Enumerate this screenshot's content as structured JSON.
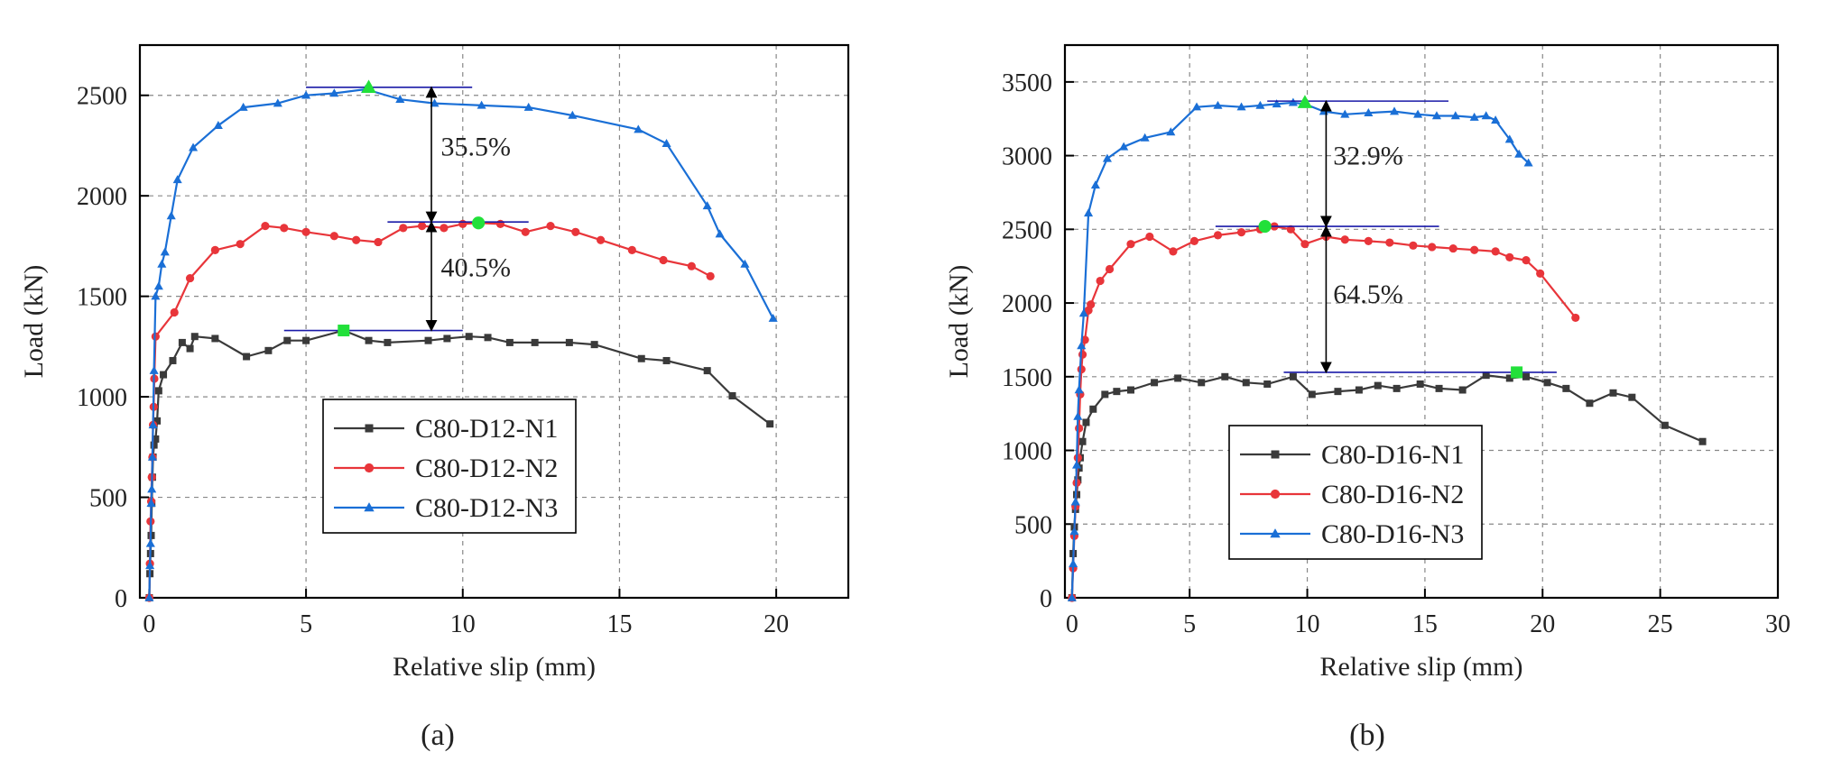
{
  "chart_data": [
    {
      "type": "line",
      "panel_label": "(a)",
      "xlabel": "Relative slip (mm)",
      "ylabel": "Load (kN)",
      "xlim": [
        -0.3,
        22.3
      ],
      "ylim": [
        0,
        2750
      ],
      "xticks": [
        0,
        5,
        10,
        15,
        20
      ],
      "yticks": [
        0,
        500,
        1000,
        1500,
        2000,
        2500
      ],
      "grid": true,
      "legend_position": "bottom-center",
      "series": [
        {
          "name": "C80-D12-N1",
          "color": "#3a3a3a",
          "marker": "square",
          "x": [
            0,
            0.02,
            0.04,
            0.06,
            0.08,
            0.1,
            0.12,
            0.15,
            0.2,
            0.25,
            0.3,
            0.45,
            0.75,
            1.05,
            1.3,
            1.45,
            2.1,
            3.1,
            3.8,
            4.4,
            5.0,
            6.2,
            7.0,
            7.6,
            8.9,
            9.5,
            10.2,
            10.8,
            11.5,
            12.3,
            13.4,
            14.2,
            15.7,
            16.5,
            17.8,
            18.6,
            19.8
          ],
          "y": [
            0,
            120,
            220,
            310,
            470,
            600,
            700,
            760,
            790,
            880,
            1030,
            1110,
            1180,
            1270,
            1240,
            1300,
            1290,
            1200,
            1230,
            1280,
            1280,
            1330,
            1280,
            1270,
            1280,
            1290,
            1300,
            1295,
            1270,
            1270,
            1270,
            1260,
            1190,
            1180,
            1130,
            1005,
            865
          ]
        },
        {
          "name": "C80-D12-N2",
          "color": "#e8353a",
          "marker": "circle",
          "x": [
            0,
            0.02,
            0.04,
            0.06,
            0.08,
            0.1,
            0.12,
            0.14,
            0.16,
            0.2,
            0.8,
            1.3,
            2.1,
            2.9,
            3.7,
            4.3,
            5.0,
            5.9,
            6.6,
            7.3,
            8.1,
            8.7,
            9.4,
            10.0,
            10.5,
            11.2,
            12.0,
            12.8,
            13.6,
            14.4,
            15.4,
            16.4,
            17.3,
            17.9
          ],
          "y": [
            0,
            170,
            380,
            480,
            600,
            700,
            860,
            950,
            1090,
            1300,
            1420,
            1590,
            1730,
            1760,
            1850,
            1840,
            1820,
            1800,
            1780,
            1770,
            1840,
            1850,
            1840,
            1860,
            1865,
            1860,
            1820,
            1850,
            1820,
            1780,
            1730,
            1680,
            1650,
            1600
          ]
        },
        {
          "name": "C80-D12-N3",
          "color": "#1a6fd6",
          "marker": "triangle",
          "x": [
            0,
            0.02,
            0.04,
            0.06,
            0.08,
            0.1,
            0.12,
            0.15,
            0.2,
            0.3,
            0.4,
            0.5,
            0.7,
            0.9,
            1.4,
            2.2,
            3.0,
            4.1,
            5.0,
            5.9,
            6.9,
            8.0,
            9.1,
            10.6,
            12.1,
            13.5,
            15.6,
            16.5,
            17.8,
            18.2,
            19.0,
            19.9
          ],
          "y": [
            0,
            160,
            270,
            470,
            540,
            700,
            860,
            1130,
            1500,
            1550,
            1660,
            1720,
            1900,
            2080,
            2240,
            2350,
            2440,
            2460,
            2500,
            2510,
            2530,
            2480,
            2460,
            2450,
            2440,
            2400,
            2330,
            2260,
            1950,
            1810,
            1660,
            1390
          ]
        }
      ],
      "peak_markers": [
        {
          "series": "C80-D12-N1",
          "x": 6.2,
          "y": 1330,
          "color": "#22e03a",
          "marker": "square"
        },
        {
          "series": "C80-D12-N2",
          "x": 10.5,
          "y": 1865,
          "color": "#22e03a",
          "marker": "circle"
        },
        {
          "series": "C80-D12-N3",
          "x": 7.0,
          "y": 2540,
          "color": "#22e03a",
          "marker": "triangle"
        }
      ],
      "reference_lines": [
        {
          "y": 2540,
          "x_from": 5.0,
          "x_to": 10.3,
          "color": "#1a1aa8"
        },
        {
          "y": 1870,
          "x_from": 7.6,
          "x_to": 12.1,
          "color": "#1a1aa8"
        },
        {
          "y": 1330,
          "x_from": 4.3,
          "x_to": 10.0,
          "color": "#1a1aa8"
        }
      ],
      "arrows": [
        {
          "x": 9.0,
          "y_from": 2540,
          "y_to": 1870
        },
        {
          "x": 9.0,
          "y_from": 1870,
          "y_to": 1330
        }
      ],
      "annotations": [
        {
          "text": "35.5%",
          "x": 9.3,
          "y": 2200
        },
        {
          "text": "40.5%",
          "x": 9.3,
          "y": 1600
        }
      ]
    },
    {
      "type": "line",
      "panel_label": "(b)",
      "xlabel": "Relative slip (mm)",
      "ylabel": "Load (kN)",
      "xlim": [
        -0.3,
        30
      ],
      "ylim": [
        0,
        3750
      ],
      "xticks": [
        0,
        5,
        10,
        15,
        20,
        25,
        30
      ],
      "yticks": [
        0,
        500,
        1000,
        1500,
        2000,
        2500,
        3000,
        3500
      ],
      "grid": true,
      "legend_position": "bottom-left",
      "series": [
        {
          "name": "C80-D16-N1",
          "color": "#3a3a3a",
          "marker": "square",
          "x": [
            0,
            0.05,
            0.1,
            0.15,
            0.2,
            0.25,
            0.3,
            0.35,
            0.45,
            0.6,
            0.9,
            1.4,
            1.9,
            2.5,
            3.5,
            4.5,
            5.5,
            6.5,
            7.4,
            8.3,
            9.4,
            10.2,
            11.3,
            12.2,
            13.0,
            13.8,
            14.8,
            15.6,
            16.6,
            17.6,
            18.6,
            19.3,
            20.2,
            21.0,
            22.0,
            23.0,
            23.8,
            25.2,
            26.8
          ],
          "y": [
            0,
            300,
            480,
            600,
            700,
            800,
            880,
            950,
            1060,
            1190,
            1280,
            1380,
            1400,
            1410,
            1460,
            1490,
            1460,
            1500,
            1460,
            1450,
            1500,
            1380,
            1400,
            1410,
            1440,
            1420,
            1450,
            1420,
            1410,
            1510,
            1490,
            1500,
            1460,
            1420,
            1320,
            1390,
            1360,
            1170,
            1060
          ]
        },
        {
          "name": "C80-D16-N2",
          "color": "#e8353a",
          "marker": "circle",
          "x": [
            0,
            0.05,
            0.1,
            0.15,
            0.2,
            0.25,
            0.3,
            0.35,
            0.4,
            0.45,
            0.55,
            0.7,
            0.8,
            1.2,
            1.6,
            2.5,
            3.3,
            4.3,
            5.2,
            6.2,
            7.2,
            8.0,
            8.6,
            9.3,
            9.9,
            10.8,
            11.6,
            12.6,
            13.5,
            14.5,
            15.3,
            16.2,
            17.1,
            18.0,
            18.6,
            19.3,
            19.9,
            21.4
          ],
          "y": [
            0,
            200,
            420,
            620,
            780,
            950,
            1150,
            1380,
            1550,
            1650,
            1750,
            1950,
            1990,
            2150,
            2230,
            2400,
            2450,
            2350,
            2420,
            2460,
            2480,
            2500,
            2520,
            2500,
            2400,
            2450,
            2430,
            2420,
            2410,
            2390,
            2380,
            2370,
            2360,
            2350,
            2310,
            2290,
            2200,
            1900
          ]
        },
        {
          "name": "C80-D16-N3",
          "color": "#1a6fd6",
          "marker": "triangle",
          "x": [
            0,
            0.05,
            0.1,
            0.15,
            0.2,
            0.25,
            0.3,
            0.4,
            0.5,
            0.7,
            1.0,
            1.5,
            2.2,
            3.1,
            4.2,
            5.3,
            6.2,
            7.2,
            8.0,
            8.7,
            9.4,
            9.9,
            10.7,
            11.6,
            12.6,
            13.7,
            14.7,
            15.5,
            16.3,
            17.1,
            17.6,
            18.0,
            18.6,
            19.0,
            19.4
          ],
          "y": [
            0,
            230,
            450,
            650,
            900,
            1230,
            1410,
            1710,
            1930,
            2610,
            2800,
            2980,
            3060,
            3120,
            3160,
            3330,
            3340,
            3330,
            3340,
            3350,
            3360,
            3350,
            3300,
            3280,
            3290,
            3300,
            3280,
            3270,
            3270,
            3260,
            3270,
            3240,
            3110,
            3010,
            2950
          ]
        }
      ],
      "peak_markers": [
        {
          "series": "C80-D16-N1",
          "x": 18.9,
          "y": 1530,
          "color": "#22e03a",
          "marker": "square"
        },
        {
          "series": "C80-D16-N2",
          "x": 8.2,
          "y": 2520,
          "color": "#22e03a",
          "marker": "circle"
        },
        {
          "series": "C80-D16-N3",
          "x": 9.9,
          "y": 3360,
          "color": "#22e03a",
          "marker": "triangle"
        }
      ],
      "reference_lines": [
        {
          "y": 3370,
          "x_from": 8.3,
          "x_to": 16.0,
          "color": "#1a1aa8"
        },
        {
          "y": 2520,
          "x_from": 6.1,
          "x_to": 15.6,
          "color": "#1a1aa8"
        },
        {
          "y": 1530,
          "x_from": 9.0,
          "x_to": 20.6,
          "color": "#1a1aa8"
        }
      ],
      "arrows": [
        {
          "x": 10.8,
          "y_from": 3370,
          "y_to": 2520
        },
        {
          "x": 10.8,
          "y_from": 2520,
          "y_to": 1530
        }
      ],
      "annotations": [
        {
          "text": "32.9%",
          "x": 11.1,
          "y": 2940
        },
        {
          "text": "64.5%",
          "x": 11.1,
          "y": 2000
        }
      ]
    }
  ]
}
